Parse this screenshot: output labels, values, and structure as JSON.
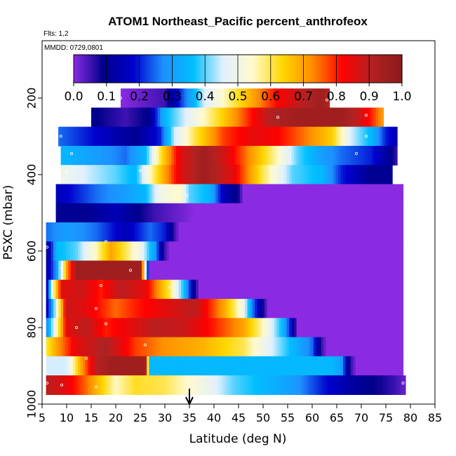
{
  "header": {
    "title": "ATOM1 Northeast_Pacific percent_anthrofeox",
    "flights": "Flts: 1,2",
    "dates": "MMDD: 0729,0801"
  },
  "chart_data": {
    "type": "heatmap",
    "title": "ATOM1 Northeast_Pacific percent_anthrofeox",
    "xlabel": "Latitude (deg N)",
    "ylabel": "PSXC (mbar)",
    "xlim": [
      5,
      85
    ],
    "ylim": [
      1000,
      50
    ],
    "y_reversed": true,
    "x_ticks": [
      5,
      10,
      15,
      20,
      25,
      30,
      35,
      40,
      45,
      50,
      55,
      60,
      65,
      70,
      75,
      80,
      85
    ],
    "y_ticks": [
      200,
      400,
      600,
      800,
      1000
    ],
    "colorbar": {
      "ticks": [
        0.0,
        0.1,
        0.2,
        0.3,
        0.4,
        0.5,
        0.6,
        0.7,
        0.8,
        0.9,
        1.0
      ],
      "tick_labels": [
        "0.0",
        "0.1",
        "0.2",
        "0.3",
        "0.4",
        "0.5",
        "0.6",
        "0.7",
        "0.8",
        "0.9",
        "1.0"
      ],
      "range": [
        0,
        1
      ],
      "colors": [
        "#8a2be2",
        "#00008b",
        "#0000cd",
        "#1e90ff",
        "#00bfff",
        "#e0f0ff",
        "#fffacd",
        "#ffd700",
        "#ff8c00",
        "#ff0000",
        "#b22222",
        "#8b1a1a"
      ]
    },
    "arrow_marker_lat": 35,
    "layers": [
      {
        "p": 200,
        "x0": 21,
        "x1": 63.5,
        "stops": [
          [
            21,
            0
          ],
          [
            30,
            0.05
          ],
          [
            33,
            0.2
          ],
          [
            38,
            0.45
          ],
          [
            42,
            0.55
          ],
          [
            48,
            0.7
          ],
          [
            53,
            0.82
          ],
          [
            58,
            0.9
          ],
          [
            62,
            0.95
          ],
          [
            63.5,
            0.9
          ]
        ]
      },
      {
        "p": 250,
        "x0": 15,
        "x1": 74.5,
        "stops": [
          [
            15,
            0.1
          ],
          [
            22,
            0.05
          ],
          [
            27,
            0.1
          ],
          [
            30,
            0.35
          ],
          [
            36,
            0.5
          ],
          [
            42,
            0.65
          ],
          [
            48,
            0.82
          ],
          [
            52,
            0.92
          ],
          [
            58,
            0.95
          ],
          [
            66,
            0.95
          ],
          [
            69,
            0.9
          ],
          [
            72,
            0.8
          ],
          [
            74.5,
            0.7
          ]
        ]
      },
      {
        "p": 300,
        "x0": 8.3,
        "x1": 77.3,
        "stops": [
          [
            8.3,
            0.25
          ],
          [
            14,
            0.2
          ],
          [
            19,
            0.15
          ],
          [
            24,
            0.1
          ],
          [
            29,
            0.2
          ],
          [
            32,
            0.45
          ],
          [
            36,
            0.6
          ],
          [
            42,
            0.78
          ],
          [
            48,
            0.85
          ],
          [
            53,
            0.82
          ],
          [
            58,
            0.75
          ],
          [
            64,
            0.65
          ],
          [
            68,
            0.45
          ],
          [
            72,
            0.35
          ],
          [
            75,
            0.2
          ],
          [
            77.3,
            0.15
          ]
        ]
      },
      {
        "p": 350,
        "x0": 8.8,
        "x1": 77.3,
        "stops": [
          [
            8.8,
            0.35
          ],
          [
            16,
            0.3
          ],
          [
            22,
            0.25
          ],
          [
            26,
            0.35
          ],
          [
            29,
            0.6
          ],
          [
            33,
            0.85
          ],
          [
            38,
            0.95
          ],
          [
            43,
            0.85
          ],
          [
            48,
            0.7
          ],
          [
            53,
            0.55
          ],
          [
            57,
            0.4
          ],
          [
            62,
            0.3
          ],
          [
            66,
            0.25
          ],
          [
            72,
            0.2
          ],
          [
            76,
            0.1
          ],
          [
            77.3,
            0.05
          ]
        ]
      },
      {
        "p": 400,
        "x0": 8.8,
        "x1": 76.3,
        "stops": [
          [
            8.8,
            0.5
          ],
          [
            14,
            0.45
          ],
          [
            20,
            0.4
          ],
          [
            24,
            0.35
          ],
          [
            27,
            0.55
          ],
          [
            30,
            0.7
          ],
          [
            33,
            0.85
          ],
          [
            38,
            0.95
          ],
          [
            44,
            0.85
          ],
          [
            50,
            0.6
          ],
          [
            56,
            0.4
          ],
          [
            62,
            0.35
          ],
          [
            66,
            0.2
          ],
          [
            72,
            0.1
          ],
          [
            76.3,
            0.1
          ]
        ]
      },
      {
        "p": 450,
        "x0": 7.8,
        "x1": 78.5,
        "stops": [
          [
            7.8,
            0.15
          ],
          [
            16,
            0.25
          ],
          [
            22,
            0.3
          ],
          [
            26,
            0.35
          ],
          [
            29,
            0.5
          ],
          [
            33,
            0.55
          ],
          [
            35,
            0.4
          ],
          [
            39,
            0.35
          ],
          [
            42,
            0.15
          ],
          [
            45,
            0.08
          ],
          [
            46,
            0
          ],
          [
            78.5,
            0
          ]
        ]
      },
      {
        "p": 500,
        "x0": 7.8,
        "x1": 78.5,
        "stops": [
          [
            7.8,
            0.1
          ],
          [
            14,
            0.1
          ],
          [
            20,
            0.15
          ],
          [
            28,
            0.05
          ],
          [
            33,
            0.02
          ],
          [
            36,
            0
          ],
          [
            78.5,
            0
          ]
        ]
      },
      {
        "p": 550,
        "x0": 5.8,
        "x1": 78.5,
        "stops": [
          [
            5.8,
            0.25
          ],
          [
            10,
            0.3
          ],
          [
            16,
            0.25
          ],
          [
            22,
            0.15
          ],
          [
            27,
            0.25
          ],
          [
            30,
            0.2
          ],
          [
            32,
            0.05
          ],
          [
            33,
            0
          ],
          [
            78.5,
            0
          ]
        ]
      },
      {
        "p": 600,
        "x0": 5.8,
        "x1": 78.5,
        "stops": [
          [
            5.8,
            0.05
          ],
          [
            8,
            0.35
          ],
          [
            12,
            0.4
          ],
          [
            16,
            0.55
          ],
          [
            19,
            0.7
          ],
          [
            22,
            0.6
          ],
          [
            25,
            0.5
          ],
          [
            28,
            0.3
          ],
          [
            30,
            0.05
          ],
          [
            31,
            0
          ],
          [
            78.5,
            0
          ]
        ]
      },
      {
        "p": 650,
        "x0": 5.8,
        "x1": 78.5,
        "stops": [
          [
            5.8,
            0.1
          ],
          [
            8,
            0.3
          ],
          [
            10,
            0.7
          ],
          [
            12,
            0.95
          ],
          [
            20,
            0.95
          ],
          [
            25,
            0.95
          ],
          [
            26,
            0.5
          ],
          [
            27,
            0
          ],
          [
            78.5,
            0
          ]
        ]
      },
      {
        "p": 700,
        "x0": 5.8,
        "x1": 78.5,
        "stops": [
          [
            5.8,
            0.1
          ],
          [
            7,
            0.5
          ],
          [
            9,
            0.85
          ],
          [
            13,
            0.88
          ],
          [
            17,
            0.8
          ],
          [
            21,
            0.9
          ],
          [
            26,
            0.85
          ],
          [
            31,
            0.6
          ],
          [
            34,
            0.35
          ],
          [
            36,
            0.1
          ],
          [
            37,
            0
          ],
          [
            78.5,
            0
          ]
        ]
      },
      {
        "p": 750,
        "x0": 5.8,
        "x1": 78.5,
        "stops": [
          [
            5.8,
            0.1
          ],
          [
            8,
            0.5
          ],
          [
            10,
            0.88
          ],
          [
            14,
            0.85
          ],
          [
            20,
            0.75
          ],
          [
            24,
            0.8
          ],
          [
            30,
            0.85
          ],
          [
            36,
            0.9
          ],
          [
            42,
            0.7
          ],
          [
            46,
            0.5
          ],
          [
            48,
            0.25
          ],
          [
            50,
            0.08
          ],
          [
            51,
            0
          ],
          [
            78.5,
            0
          ]
        ]
      },
      {
        "p": 800,
        "x0": 5.8,
        "x1": 78.5,
        "stops": [
          [
            5.8,
            0.25
          ],
          [
            8,
            0.55
          ],
          [
            10,
            0.85
          ],
          [
            14,
            0.9
          ],
          [
            18,
            0.8
          ],
          [
            23,
            0.85
          ],
          [
            28,
            0.9
          ],
          [
            34,
            0.88
          ],
          [
            40,
            0.8
          ],
          [
            46,
            0.7
          ],
          [
            50,
            0.55
          ],
          [
            54,
            0.35
          ],
          [
            56,
            0.15
          ],
          [
            57,
            0
          ],
          [
            78.5,
            0
          ]
        ]
      },
      {
        "p": 850,
        "x0": 5.8,
        "x1": 78.5,
        "stops": [
          [
            5.8,
            0.6
          ],
          [
            8,
            0.7
          ],
          [
            12,
            0.85
          ],
          [
            18,
            0.92
          ],
          [
            24,
            0.78
          ],
          [
            30,
            0.72
          ],
          [
            38,
            0.68
          ],
          [
            46,
            0.6
          ],
          [
            52,
            0.45
          ],
          [
            56,
            0.35
          ],
          [
            60,
            0.25
          ],
          [
            62,
            0.05
          ],
          [
            63,
            0
          ],
          [
            78.5,
            0
          ]
        ]
      },
      {
        "p": 900,
        "x0": 5.8,
        "x1": 78.5,
        "stops": [
          [
            5.8,
            0.45
          ],
          [
            10,
            0.45
          ],
          [
            13,
            0.7
          ],
          [
            16,
            0.9
          ],
          [
            19,
            0.95
          ],
          [
            26,
            0.95
          ],
          [
            27,
            0.35
          ],
          [
            40,
            0.35
          ],
          [
            55,
            0.35
          ],
          [
            64,
            0.35
          ],
          [
            66,
            0.3
          ],
          [
            67,
            0.15
          ],
          [
            68,
            0.05
          ],
          [
            69,
            0
          ],
          [
            78.5,
            0
          ]
        ]
      },
      {
        "p": 950,
        "x0": 5.8,
        "x1": 79,
        "stops": [
          [
            5.8,
            0.9
          ],
          [
            10,
            0.85
          ],
          [
            14,
            0.75
          ],
          [
            17,
            0.65
          ],
          [
            20,
            0.55
          ],
          [
            24,
            0.62
          ],
          [
            30,
            0.6
          ],
          [
            34,
            0.55
          ],
          [
            38,
            0.5
          ],
          [
            44,
            0.4
          ],
          [
            50,
            0.35
          ],
          [
            56,
            0.3
          ],
          [
            62,
            0.2
          ],
          [
            68,
            0.12
          ],
          [
            74,
            0.08
          ],
          [
            77,
            0.05
          ],
          [
            79,
            0.02
          ]
        ]
      }
    ]
  }
}
